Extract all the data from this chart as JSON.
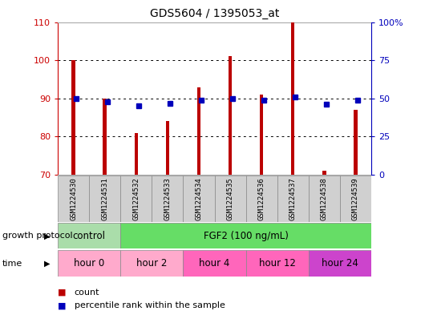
{
  "title": "GDS5604 / 1395053_at",
  "samples": [
    "GSM1224530",
    "GSM1224531",
    "GSM1224532",
    "GSM1224533",
    "GSM1224534",
    "GSM1224535",
    "GSM1224536",
    "GSM1224537",
    "GSM1224538",
    "GSM1224539"
  ],
  "count_values": [
    100,
    90,
    81,
    84,
    93,
    101,
    91,
    110,
    71,
    87
  ],
  "percentile_values": [
    50,
    48,
    45,
    47,
    49,
    50,
    49,
    51,
    46,
    49
  ],
  "ylim_left": [
    70,
    110
  ],
  "ylim_right": [
    0,
    100
  ],
  "bar_color": "#bb0000",
  "dot_color": "#0000bb",
  "growth_protocol_segments": [
    {
      "text": "control",
      "start": 0,
      "end": 2,
      "color": "#aaddaa"
    },
    {
      "text": "FGF2 (100 ng/mL)",
      "start": 2,
      "end": 10,
      "color": "#66dd66"
    }
  ],
  "time_segments": [
    {
      "text": "hour 0",
      "start": 0,
      "end": 2,
      "color": "#ffaacc"
    },
    {
      "text": "hour 2",
      "start": 2,
      "end": 4,
      "color": "#ffaacc"
    },
    {
      "text": "hour 4",
      "start": 4,
      "end": 6,
      "color": "#ff66bb"
    },
    {
      "text": "hour 12",
      "start": 6,
      "end": 8,
      "color": "#ff66bb"
    },
    {
      "text": "hour 24",
      "start": 8,
      "end": 10,
      "color": "#cc44cc"
    }
  ],
  "left_axis_color": "#cc0000",
  "right_axis_color": "#0000bb",
  "left_yticks": [
    70,
    80,
    90,
    100,
    110
  ],
  "right_yticks": [
    0,
    25,
    50,
    75,
    100
  ],
  "right_ytick_labels": [
    "0",
    "25",
    "50",
    "75",
    "100%"
  ],
  "grid_yticks": [
    80,
    90,
    100
  ],
  "bar_width": 0.12,
  "legend_count_label": "count",
  "legend_pct_label": "percentile rank within the sample",
  "gp_label": "growth protocol",
  "time_label": "time"
}
